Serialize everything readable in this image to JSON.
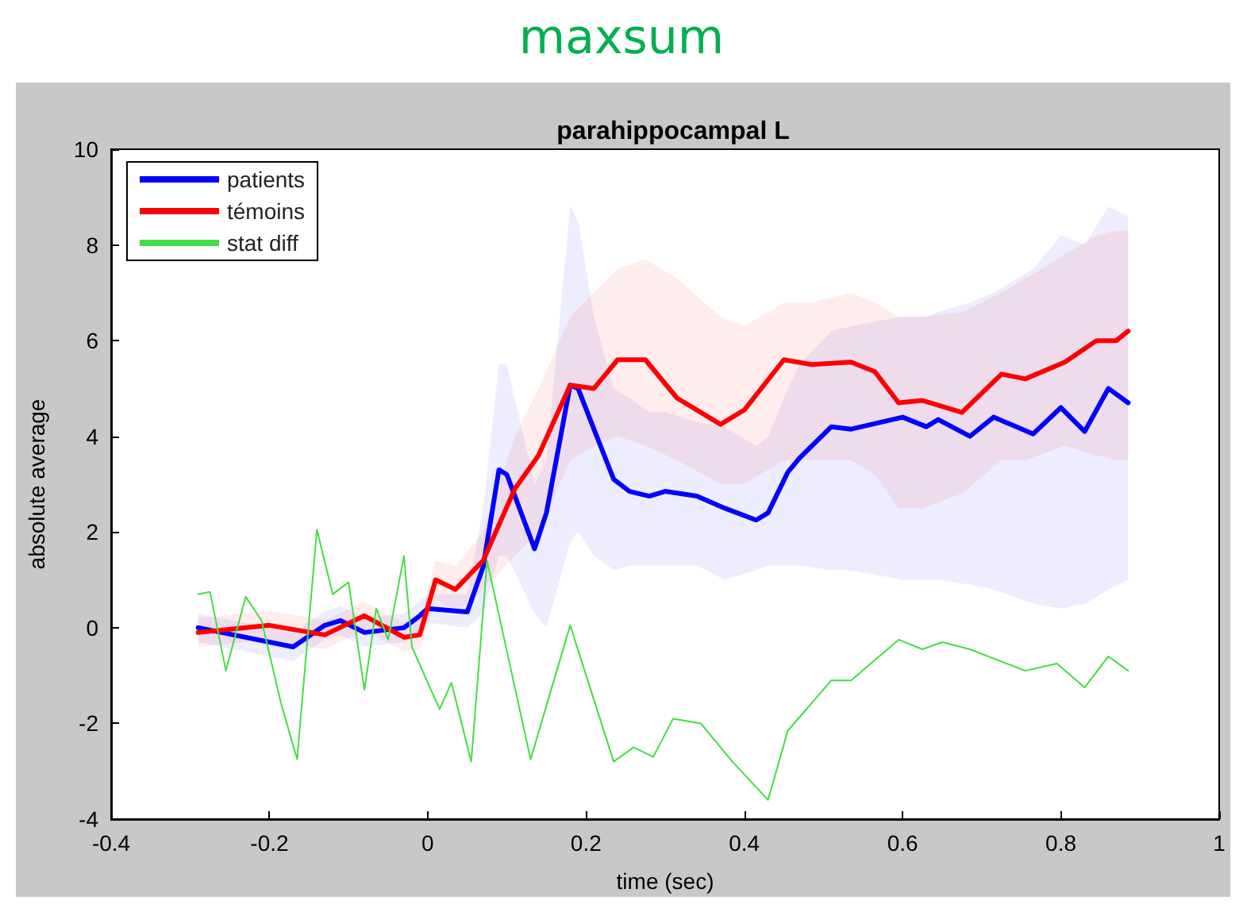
{
  "chart_data": {
    "type": "line",
    "title": "maxsum",
    "subtitle": "parahippocampal L",
    "xlabel": "time (sec)",
    "ylabel": "absolute average",
    "xlim": [
      -0.4,
      1
    ],
    "xticks": [
      -0.4,
      -0.2,
      0,
      0.2,
      0.4,
      0.6,
      0.8,
      1
    ],
    "ylim": [
      -4,
      10
    ],
    "yticks": [
      -4,
      -2,
      0,
      2,
      4,
      6,
      8,
      10
    ],
    "grid": false,
    "legend": "top left",
    "marker": "none",
    "line_style": "solid",
    "series": [
      {
        "name": "patients",
        "color": "#0000ff",
        "x": [
          -0.29,
          -0.17,
          -0.13,
          -0.11,
          -0.08,
          -0.03,
          -0.01,
          0,
          0.05,
          0.07,
          0.09,
          0.1,
          0.135,
          0.15,
          0.18,
          0.19,
          0.21,
          0.235,
          0.255,
          0.28,
          0.3,
          0.34,
          0.375,
          0.415,
          0.43,
          0.455,
          0.47,
          0.51,
          0.535,
          0.6,
          0.63,
          0.645,
          0.685,
          0.715,
          0.765,
          0.8,
          0.83,
          0.86,
          0.885
        ],
        "values": [
          0,
          -0.4,
          0.05,
          0.15,
          -0.1,
          0,
          0.25,
          0.4,
          0.33,
          1.27,
          3.3,
          3.2,
          1.65,
          2.4,
          5.07,
          5.0,
          4.15,
          3.1,
          2.85,
          2.75,
          2.85,
          2.75,
          2.5,
          2.25,
          2.4,
          3.25,
          3.55,
          4.2,
          4.15,
          4.4,
          4.2,
          4.35,
          4.0,
          4.4,
          4.05,
          4.6,
          4.1,
          5.0,
          4.7
        ],
        "lower": [
          -0.3,
          -0.7,
          -0.25,
          -0.15,
          -0.4,
          -0.3,
          -0.05,
          0.1,
          0,
          0.3,
          1.5,
          1.5,
          0.3,
          0,
          1.8,
          2,
          1.5,
          1.2,
          1.3,
          1.3,
          1.3,
          1.3,
          1.0,
          1.2,
          1.3,
          1.3,
          1.3,
          1.2,
          1.2,
          1.0,
          1.0,
          1.0,
          0.9,
          0.8,
          0.5,
          0.4,
          0.5,
          0.8,
          1.0
        ],
        "upper": [
          0.3,
          -0.1,
          0.35,
          0.45,
          0.2,
          0.3,
          0.55,
          0.7,
          0.7,
          2.5,
          5.5,
          5.5,
          3,
          3.5,
          8.8,
          8.5,
          6.5,
          5,
          4.8,
          4.5,
          4.5,
          4.3,
          4.2,
          3.8,
          4,
          5,
          5.5,
          6.2,
          6.3,
          6.5,
          6.5,
          6.6,
          6.8,
          7,
          7.5,
          8.2,
          8,
          8.8,
          8.6
        ]
      },
      {
        "name": "témoins",
        "color": "#ff0000",
        "x": [
          -0.29,
          -0.2,
          -0.13,
          -0.08,
          -0.03,
          -0.01,
          0.01,
          0.035,
          0.07,
          0.11,
          0.14,
          0.18,
          0.21,
          0.24,
          0.275,
          0.315,
          0.37,
          0.4,
          0.45,
          0.485,
          0.535,
          0.565,
          0.595,
          0.625,
          0.675,
          0.725,
          0.755,
          0.805,
          0.845,
          0.87,
          0.885
        ],
        "values": [
          -0.1,
          0.05,
          -0.15,
          0.25,
          -0.2,
          -0.15,
          1.0,
          0.8,
          1.4,
          2.9,
          3.6,
          5.07,
          5.0,
          5.6,
          5.6,
          4.8,
          4.25,
          4.55,
          5.6,
          5.5,
          5.55,
          5.35,
          4.7,
          4.75,
          4.5,
          5.3,
          5.2,
          5.55,
          6.0,
          6.0,
          6.2
        ],
        "lower": [
          -0.4,
          -0.25,
          -0.45,
          -0.05,
          -0.5,
          -0.45,
          0.6,
          0.3,
          0.8,
          1.5,
          2,
          3.5,
          3.8,
          4,
          3.8,
          3.5,
          3,
          3,
          3.5,
          3.5,
          3.5,
          3.2,
          2.5,
          2.5,
          2.8,
          3.5,
          3.5,
          3.8,
          3.6,
          3.5,
          3.5
        ],
        "upper": [
          0.2,
          0.35,
          0.15,
          0.55,
          0.1,
          0.15,
          1.4,
          1.3,
          2,
          4,
          5,
          6.5,
          7,
          7.5,
          7.7,
          7.3,
          6.5,
          6.3,
          6.8,
          6.8,
          7,
          6.8,
          6.5,
          6.5,
          6.6,
          7,
          7.3,
          7.8,
          8.2,
          8.3,
          8.3
        ]
      },
      {
        "name": "stat diff",
        "color": "#44dd44",
        "x": [
          -0.29,
          -0.275,
          -0.255,
          -0.23,
          -0.21,
          -0.185,
          -0.165,
          -0.14,
          -0.12,
          -0.1,
          -0.08,
          -0.065,
          -0.05,
          -0.03,
          -0.02,
          0.015,
          0.03,
          0.055,
          0.075,
          0.13,
          0.18,
          0.235,
          0.26,
          0.285,
          0.31,
          0.345,
          0.385,
          0.43,
          0.455,
          0.51,
          0.535,
          0.595,
          0.625,
          0.65,
          0.685,
          0.755,
          0.795,
          0.83,
          0.86,
          0.885
        ],
        "values": [
          0.7,
          0.75,
          -0.9,
          0.65,
          0.15,
          -1.6,
          -2.75,
          2.05,
          0.7,
          0.95,
          -1.3,
          0.4,
          -0.25,
          1.5,
          -0.4,
          -1.7,
          -1.15,
          -2.8,
          1.4,
          -2.75,
          0.05,
          -2.8,
          -2.5,
          -2.7,
          -1.9,
          -2.0,
          -2.8,
          -3.6,
          -2.15,
          -1.1,
          -1.1,
          -0.25,
          -0.45,
          -0.3,
          -0.45,
          -0.9,
          -0.75,
          -1.25,
          -0.6,
          -0.9
        ]
      }
    ]
  }
}
